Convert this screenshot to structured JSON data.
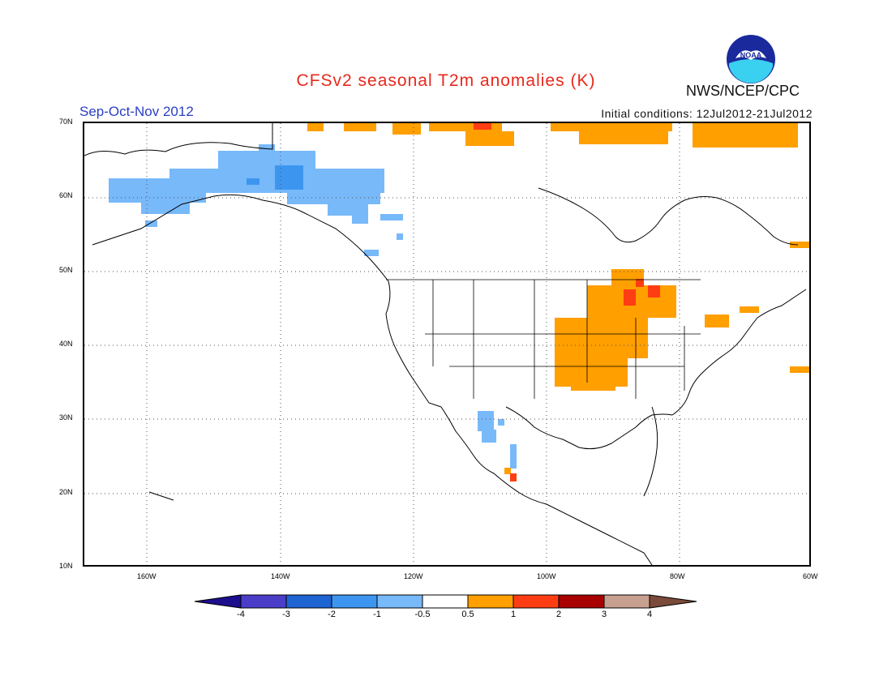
{
  "header": {
    "title": "CFSv2 seasonal T2m anomalies (K)",
    "period": "Sep-Oct-Nov 2012",
    "initial_conditions": "Initial conditions: 12Jul2012-21Jul2012",
    "agency": "NWS/NCEP/CPC",
    "logo_text": "NOAA"
  },
  "map": {
    "region": "North America",
    "lat_labels": [
      "70N",
      "60N",
      "50N",
      "40N",
      "30N",
      "20N",
      "10N"
    ],
    "lon_labels": [
      "160W",
      "140W",
      "120W",
      "100W",
      "80W",
      "60W"
    ],
    "grid_style": "dotted"
  },
  "colorbar": {
    "labels": [
      "-4",
      "-3",
      "-2",
      "-1",
      "-0.5",
      "0.5",
      "1",
      "2",
      "3",
      "4"
    ],
    "colors": [
      "#1c0e8c",
      "#4a3ec8",
      "#1e64d2",
      "#3c96f0",
      "#78b9fa",
      "#ffffff",
      "#ff9f00",
      "#fe3e12",
      "#a80000",
      "#c8a090",
      "#7a4a3a"
    ]
  }
}
